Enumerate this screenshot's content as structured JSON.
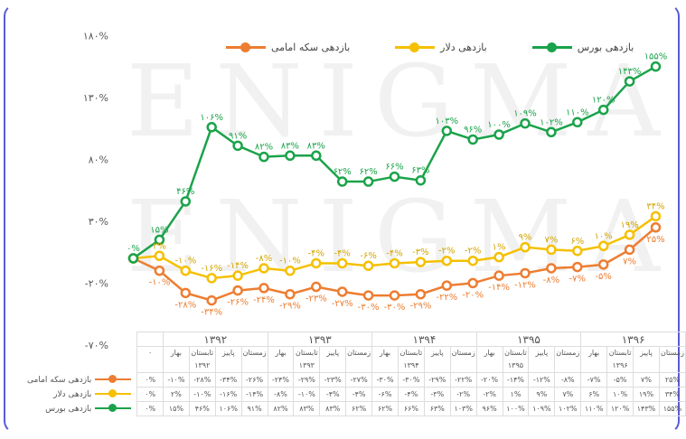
{
  "watermark": "ENIGMA",
  "chart_data": {
    "type": "line",
    "categories": [
      "۰",
      "بهار ۱۳۹۲",
      "تابستان ۱۳۹۲",
      "پاییز ۱۳۹۲",
      "زمستان ۱۳۹۲",
      "بهار ۱۳۹۳",
      "تابستان ۱۳۹۳",
      "پاییز ۱۳۹۳",
      "زمستان ۱۳۹۳",
      "بهار ۱۳۹۴",
      "تابستان ۱۳۹۴",
      "پاییز ۱۳۹۴",
      "زمستان ۱۳۹۴",
      "بهار ۱۳۹۵",
      "تابستان ۱۳۹۵",
      "پاییز ۱۳۹۵",
      "زمستان ۱۳۹۵",
      "بهار ۱۳۹۶",
      "تابستان ۱۳۹۶",
      "پاییز ۱۳۹۶",
      "زمستان ۱۳۹۶"
    ],
    "years": [
      "۱۳۹۲",
      "۱۳۹۳",
      "۱۳۹۴",
      "۱۳۹۵",
      "۱۳۹۶"
    ],
    "seasons": [
      "بهار",
      "تابستان",
      "پاییز",
      "زمستان"
    ],
    "zero_label": "۰",
    "ylim": [
      -70,
      180
    ],
    "yticks": [
      "-۷۰%",
      "-۲۰%",
      "۳۰%",
      "۸۰%",
      "۱۳۰%",
      "۱۸۰%"
    ],
    "ytick_values": [
      -70,
      -20,
      30,
      80,
      130,
      180
    ],
    "grid": false,
    "legend": "top",
    "series": [
      {
        "name": "بازدهی سکه امامی",
        "color": "#ed7d31",
        "values": [
          0,
          -10,
          -28,
          -34,
          -26,
          -24,
          -29,
          -23,
          -27,
          -30,
          -30,
          -29,
          -22,
          -20,
          -14,
          -12,
          -8,
          -7,
          -5,
          7,
          25
        ]
      },
      {
        "name": "بازدهی دلار",
        "color": "#f5c000",
        "values": [
          0,
          2,
          -10,
          -16,
          -14,
          -8,
          -10,
          -4,
          -4,
          -6,
          -4,
          -3,
          -2,
          -2,
          1,
          9,
          7,
          6,
          10,
          19,
          34
        ]
      },
      {
        "name": "بازدهی بورس",
        "color": "#1aa34a",
        "values": [
          0,
          15,
          46,
          106,
          91,
          82,
          83,
          83,
          62,
          62,
          66,
          63,
          103,
          96,
          100,
          109,
          102,
          110,
          120,
          143,
          155
        ]
      }
    ]
  }
}
